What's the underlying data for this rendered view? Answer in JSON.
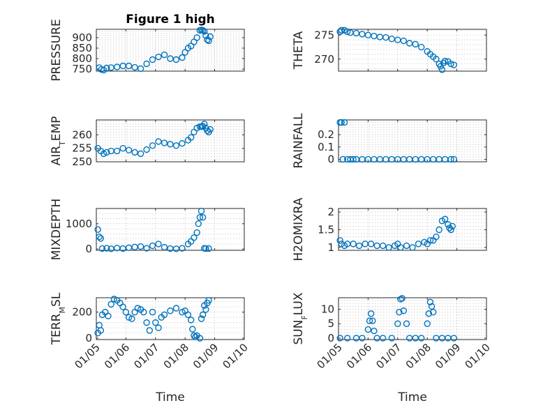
{
  "figure_title": "Figure 1 high",
  "colors": {
    "marker": "#0072bd",
    "axis": "#262626",
    "grid": "#c8c8c8"
  },
  "chart_data": [
    {
      "type": "scatter",
      "title": "Figure 1 high",
      "ylabel": "PRESSURE",
      "xlabel": "",
      "xlim": [
        0,
        5
      ],
      "ylim": [
        740,
        940
      ],
      "yticks": [
        750,
        800,
        850,
        900
      ],
      "xticklabels": [],
      "grid": true,
      "x": [
        0.1,
        0.17,
        0.25,
        0.35,
        0.5,
        0.7,
        0.9,
        1.1,
        1.3,
        1.5,
        1.7,
        1.9,
        2.1,
        2.3,
        2.5,
        2.7,
        2.9,
        3.0,
        3.1,
        3.2,
        3.3,
        3.4,
        3.5,
        3.55,
        3.6,
        3.65,
        3.7,
        3.75,
        3.8,
        3.85
      ],
      "y": [
        757,
        748,
        745,
        755,
        757,
        760,
        765,
        765,
        758,
        752,
        775,
        795,
        808,
        818,
        800,
        795,
        805,
        830,
        850,
        860,
        880,
        900,
        935,
        937,
        935,
        930,
        910,
        890,
        885,
        905
      ]
    },
    {
      "type": "scatter",
      "title": "",
      "ylabel": "THETA",
      "xlabel": "",
      "xlim": [
        0,
        5
      ],
      "ylim": [
        267.5,
        276.2
      ],
      "yticks": [
        270,
        275
      ],
      "xticklabels": [],
      "grid": true,
      "x": [
        0.05,
        0.1,
        0.2,
        0.3,
        0.4,
        0.6,
        0.8,
        1.0,
        1.2,
        1.4,
        1.6,
        1.8,
        2.0,
        2.2,
        2.4,
        2.6,
        2.8,
        3.0,
        3.1,
        3.2,
        3.3,
        3.4,
        3.45,
        3.5,
        3.55,
        3.6,
        3.7,
        3.8,
        3.9
      ],
      "y": [
        275.7,
        276.0,
        276.0,
        275.7,
        275.5,
        275.4,
        275.2,
        275.0,
        274.8,
        274.6,
        274.5,
        274.2,
        274.0,
        273.8,
        273.3,
        273.1,
        272.5,
        271.6,
        271.0,
        270.5,
        270.0,
        269.0,
        268.5,
        267.8,
        269.2,
        269.6,
        269.5,
        269.0,
        268.8
      ]
    },
    {
      "type": "scatter",
      "title": "",
      "ylabel": "AIR_TEMP",
      "xlabel": "",
      "xlim": [
        0,
        5
      ],
      "ylim": [
        250,
        265.5
      ],
      "yticks": [
        250,
        255,
        260
      ],
      "xticklabels": [],
      "grid": true,
      "x": [
        0.05,
        0.15,
        0.25,
        0.35,
        0.5,
        0.7,
        0.9,
        1.1,
        1.3,
        1.5,
        1.7,
        1.9,
        2.1,
        2.3,
        2.5,
        2.7,
        2.9,
        3.1,
        3.2,
        3.3,
        3.4,
        3.5,
        3.55,
        3.6,
        3.65,
        3.7,
        3.75,
        3.8,
        3.85
      ],
      "y": [
        255,
        254,
        253,
        253.5,
        254,
        254,
        255,
        254.3,
        253.5,
        253,
        254.5,
        256,
        257.5,
        257,
        256.5,
        256,
        256.8,
        258,
        259,
        261,
        262.5,
        263,
        263,
        263.2,
        264,
        262.5,
        261.5,
        261,
        262
      ]
    },
    {
      "type": "scatter",
      "title": "",
      "ylabel": "RAINFALL",
      "xlabel": "",
      "xlim": [
        0,
        5
      ],
      "ylim": [
        -0.02,
        0.32
      ],
      "yticks": [
        0,
        0.1,
        0.2
      ],
      "xticklabels": [],
      "grid": true,
      "x": [
        0.05,
        0.1,
        0.15,
        0.2,
        0.3,
        0.4,
        0.5,
        0.6,
        0.8,
        1.0,
        1.2,
        1.4,
        1.6,
        1.8,
        2.0,
        2.2,
        2.4,
        2.6,
        2.8,
        3.0,
        3.2,
        3.4,
        3.6,
        3.8,
        3.9
      ],
      "y": [
        0.3,
        0.3,
        0,
        0.3,
        0,
        0,
        0,
        0,
        0,
        0,
        0,
        0,
        0,
        0,
        0,
        0,
        0,
        0,
        0,
        0,
        0,
        0,
        0,
        0,
        0
      ]
    },
    {
      "type": "scatter",
      "title": "",
      "ylabel": "MIXDEPTH",
      "xlabel": "",
      "xlim": [
        0,
        5
      ],
      "ylim": [
        -50,
        1600
      ],
      "yticks": [
        0,
        1000
      ],
      "xticklabels": [],
      "grid": true,
      "x": [
        0.05,
        0.1,
        0.15,
        0.2,
        0.35,
        0.5,
        0.7,
        0.9,
        1.1,
        1.3,
        1.5,
        1.7,
        1.9,
        2.1,
        2.3,
        2.5,
        2.7,
        2.9,
        3.1,
        3.2,
        3.3,
        3.4,
        3.45,
        3.5,
        3.55,
        3.6,
        3.65,
        3.7,
        3.8
      ],
      "y": [
        770,
        480,
        420,
        20,
        30,
        10,
        40,
        20,
        50,
        80,
        100,
        30,
        130,
        200,
        70,
        20,
        10,
        30,
        200,
        300,
        450,
        650,
        1000,
        1250,
        1500,
        1250,
        30,
        20,
        20
      ]
    },
    {
      "type": "scatter",
      "title": "",
      "ylabel": "H2OMIXRA",
      "xlabel": "",
      "xlim": [
        0,
        5
      ],
      "ylim": [
        0.92,
        2.1
      ],
      "yticks": [
        1,
        1.5,
        2
      ],
      "xticklabels": [],
      "grid": true,
      "x": [
        0.05,
        0.1,
        0.2,
        0.3,
        0.5,
        0.7,
        0.9,
        1.1,
        1.3,
        1.5,
        1.7,
        1.9,
        2.0,
        2.1,
        2.3,
        2.5,
        2.7,
        2.9,
        3.0,
        3.1,
        3.2,
        3.3,
        3.4,
        3.5,
        3.6,
        3.7,
        3.75,
        3.8,
        3.85
      ],
      "y": [
        1.2,
        1.1,
        1.05,
        1.1,
        1.1,
        1.05,
        1.1,
        1.1,
        1.05,
        1.05,
        1.0,
        1.05,
        1.1,
        1.0,
        1.05,
        1.0,
        1.1,
        1.15,
        1.1,
        1.2,
        1.2,
        1.3,
        1.5,
        1.75,
        1.8,
        1.65,
        1.55,
        1.5,
        1.6
      ]
    },
    {
      "type": "scatter",
      "title": "",
      "ylabel": "TERR_MSL",
      "xlabel": "Time",
      "xlim": [
        0,
        5
      ],
      "ylim": [
        -10,
        310
      ],
      "yticks": [
        0,
        200
      ],
      "xticklabels": [
        "01/05",
        "01/06",
        "01/07",
        "01/08",
        "01/09",
        "01/10"
      ],
      "grid": true,
      "x": [
        0.05,
        0.1,
        0.15,
        0.2,
        0.3,
        0.4,
        0.5,
        0.6,
        0.7,
        0.8,
        0.9,
        1.0,
        1.1,
        1.2,
        1.3,
        1.4,
        1.5,
        1.6,
        1.7,
        1.8,
        1.9,
        2.0,
        2.1,
        2.2,
        2.3,
        2.5,
        2.7,
        2.9,
        3.0,
        3.1,
        3.2,
        3.25,
        3.3,
        3.35,
        3.4,
        3.5,
        3.55,
        3.6,
        3.65,
        3.7,
        3.75,
        3.8
      ],
      "y": [
        40,
        100,
        60,
        180,
        200,
        170,
        260,
        300,
        290,
        270,
        240,
        200,
        160,
        150,
        200,
        230,
        220,
        200,
        120,
        60,
        200,
        120,
        80,
        160,
        180,
        210,
        230,
        200,
        210,
        180,
        140,
        70,
        20,
        10,
        20,
        0,
        150,
        180,
        250,
        220,
        270,
        290
      ]
    },
    {
      "type": "scatter",
      "title": "",
      "ylabel": "SUN_FLUX",
      "xlabel": "Time",
      "xlim": [
        0,
        5
      ],
      "ylim": [
        -0.5,
        14
      ],
      "yticks": [
        0,
        5,
        10
      ],
      "xticklabels": [
        "01/05",
        "01/06",
        "01/07",
        "01/08",
        "01/09",
        "01/10"
      ],
      "grid": true,
      "x": [
        0.05,
        0.3,
        0.6,
        0.8,
        1.0,
        1.05,
        1.1,
        1.15,
        1.2,
        1.3,
        1.5,
        1.8,
        2.0,
        2.05,
        2.1,
        2.15,
        2.2,
        2.3,
        2.4,
        2.6,
        2.8,
        3.0,
        3.05,
        3.1,
        3.15,
        3.2,
        3.3,
        3.5,
        3.7,
        3.9
      ],
      "y": [
        0,
        0,
        0,
        0,
        3,
        6,
        8.5,
        6,
        2.5,
        0,
        0,
        0,
        5,
        9,
        13.5,
        13.8,
        9.5,
        5,
        0,
        0,
        0,
        5,
        8.5,
        12.5,
        11,
        9,
        0,
        0,
        0,
        0
      ]
    }
  ]
}
